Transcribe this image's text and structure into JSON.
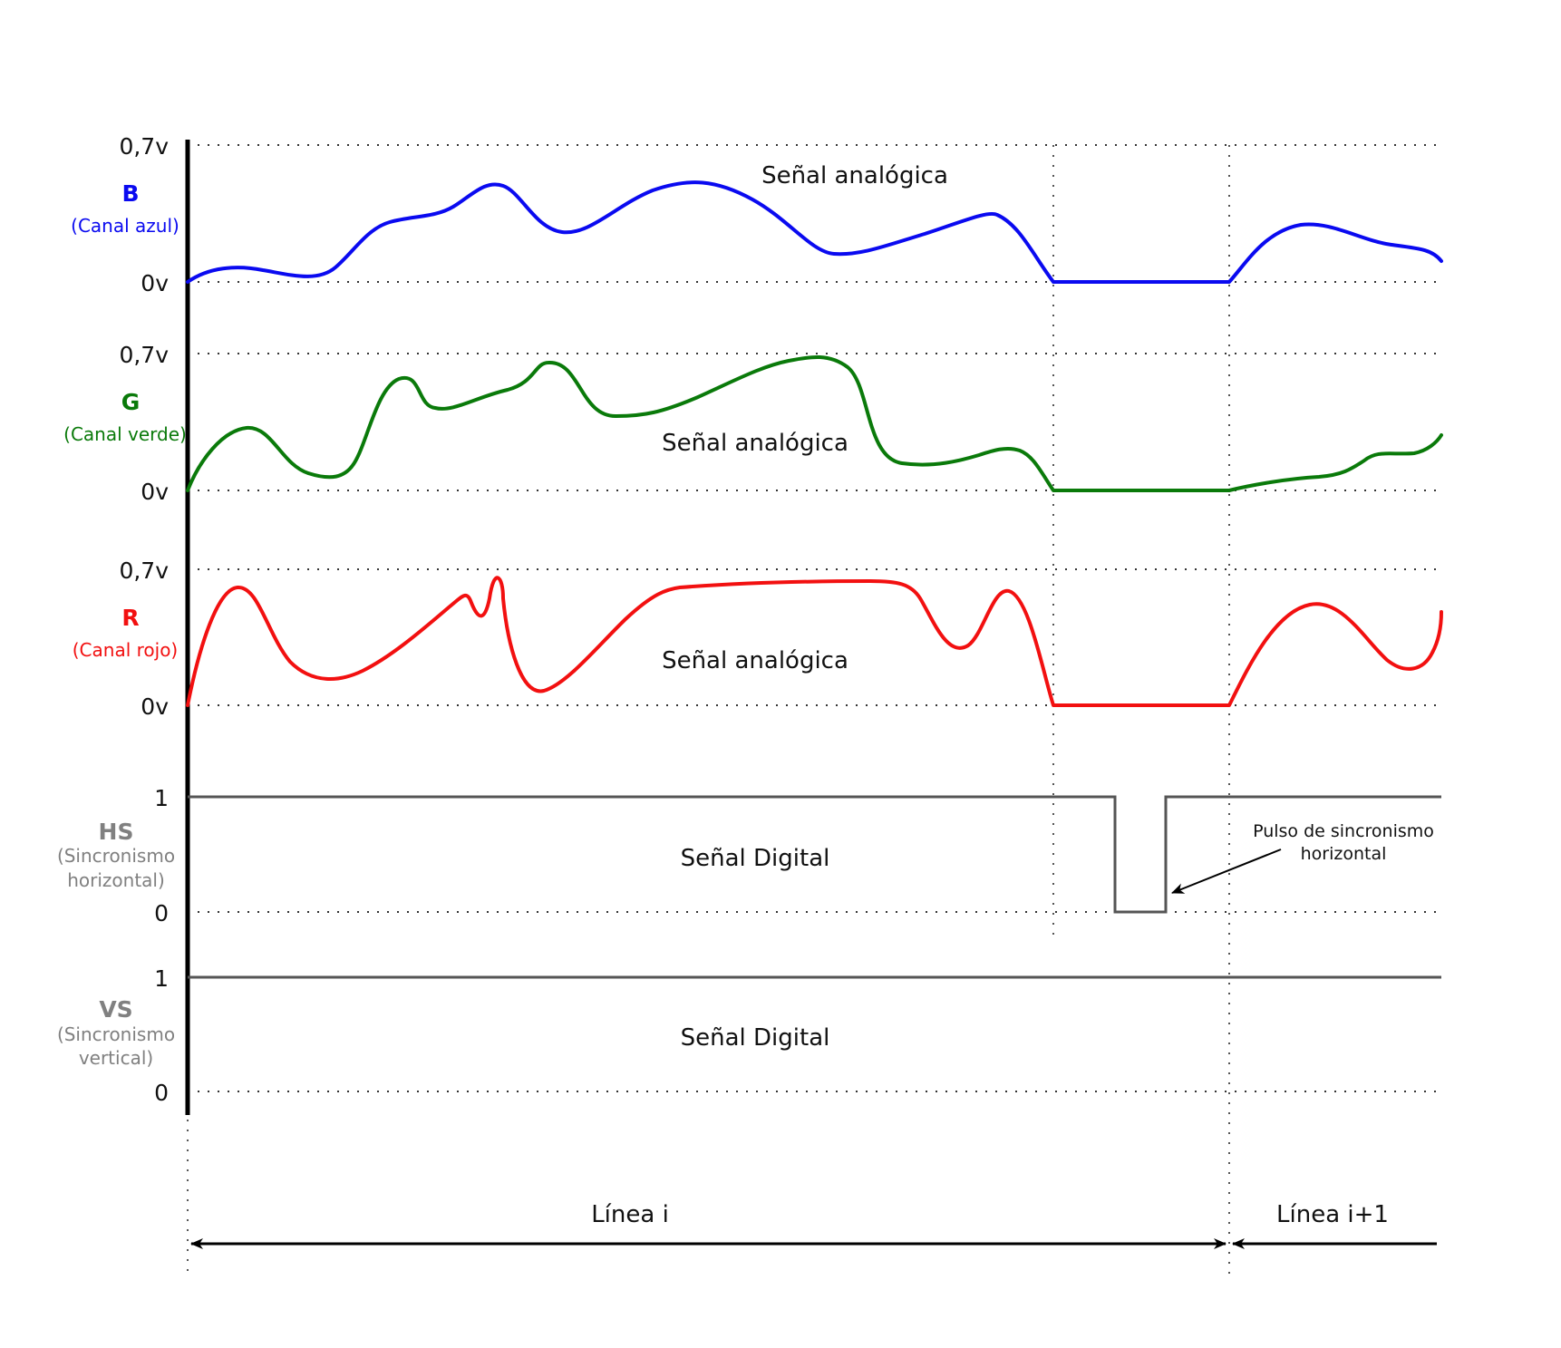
{
  "colors": {
    "blue": "#0a0af0",
    "green": "#0a7a0a",
    "red": "#f21010",
    "gray": "#808080",
    "digital_line": "#555555"
  },
  "channels": {
    "b": {
      "top_label": "0,7v",
      "bottom_label": "0v",
      "name": "B",
      "desc": "(Canal azul)",
      "signal_label": "Señal analógica"
    },
    "g": {
      "top_label": "0,7v",
      "bottom_label": "0v",
      "name": "G",
      "desc": "(Canal verde)",
      "signal_label": "Señal analógica"
    },
    "r": {
      "top_label": "0,7v",
      "bottom_label": "0v",
      "name": "R",
      "desc": "(Canal rojo)",
      "signal_label": "Señal analógica"
    },
    "hs": {
      "top_label": "1",
      "bottom_label": "0",
      "name": "HS",
      "desc_line1": "(Sincronismo",
      "desc_line2": "horizontal)",
      "signal_label": "Señal Digital"
    },
    "vs": {
      "top_label": "1",
      "bottom_label": "0",
      "name": "VS",
      "desc_line1": "(Sincronismo",
      "desc_line2": "vertical)",
      "signal_label": "Señal Digital"
    }
  },
  "annotation": {
    "line1": "Pulso de sincronismo",
    "line2": "horizontal"
  },
  "timeline": {
    "line_i": "Línea i",
    "line_i_plus_1": "Línea i+1"
  }
}
